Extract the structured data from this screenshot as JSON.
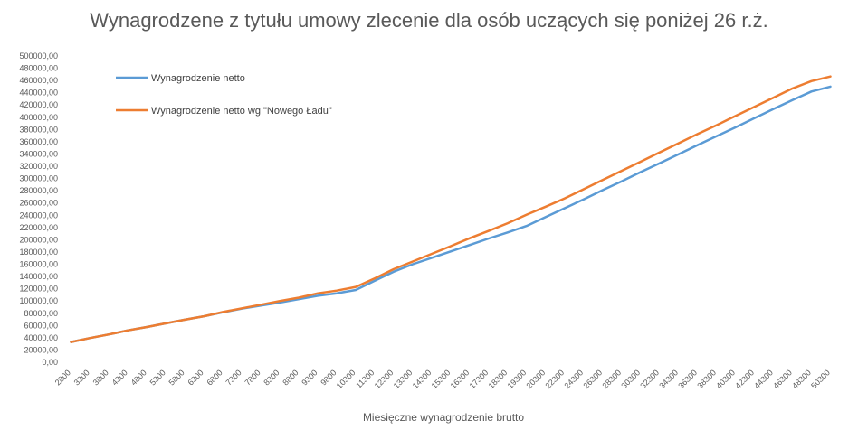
{
  "chart_data": {
    "type": "line",
    "title": "Wynagrodzene z tytułu umowy zlecenie dla osób uczących się poniżej 26 r.ż.",
    "xlabel": "Miesięczne wynagrodzenie brutto",
    "ylabel": "",
    "ylim": [
      0,
      500000
    ],
    "y_ticks": [
      0,
      20000,
      40000,
      60000,
      80000,
      100000,
      120000,
      140000,
      160000,
      180000,
      200000,
      220000,
      240000,
      260000,
      280000,
      300000,
      320000,
      340000,
      360000,
      380000,
      400000,
      420000,
      440000,
      460000,
      480000,
      500000
    ],
    "y_tick_labels": [
      "0,00",
      "20000,00",
      "40000,00",
      "60000,00",
      "80000,00",
      "100000,00",
      "120000,00",
      "140000,00",
      "160000,00",
      "180000,00",
      "200000,00",
      "220000,00",
      "240000,00",
      "260000,00",
      "280000,00",
      "300000,00",
      "320000,00",
      "340000,00",
      "360000,00",
      "380000,00",
      "400000,00",
      "420000,00",
      "440000,00",
      "460000,00",
      "480000,00",
      "500000,00"
    ],
    "categories": [
      "2800",
      "3300",
      "3800",
      "4300",
      "4800",
      "5300",
      "5800",
      "6300",
      "6800",
      "7300",
      "7800",
      "8300",
      "8800",
      "9300",
      "9800",
      "10300",
      "11300",
      "12300",
      "13300",
      "14300",
      "15300",
      "16300",
      "17300",
      "18300",
      "19300",
      "20300",
      "22300",
      "24300",
      "26300",
      "28300",
      "30300",
      "32300",
      "34300",
      "36300",
      "38300",
      "40300",
      "42300",
      "44300",
      "46300",
      "48300",
      "50300"
    ],
    "grid": false,
    "legend_position": "top-left",
    "series": [
      {
        "name": "Wynagrodzenie netto",
        "color": "#5B9BD5",
        "values": [
          33000,
          39500,
          45500,
          52000,
          57500,
          63500,
          69500,
          75000,
          81500,
          87500,
          92500,
          97500,
          103000,
          108500,
          112500,
          118000,
          133000,
          148000,
          160000,
          170500,
          181000,
          191500,
          202000,
          212000,
          222500,
          237000,
          251500,
          266000,
          281000,
          295500,
          310500,
          325000,
          339500,
          354500,
          369000,
          383500,
          398500,
          413500,
          428000,
          442000,
          450000
        ]
      },
      {
        "name": "Wynagrodzenie netto wg \"Nowego Ładu\"",
        "color": "#ED7D31",
        "values": [
          33000,
          39500,
          45500,
          52000,
          57500,
          63500,
          69500,
          75000,
          82000,
          88000,
          94000,
          100000,
          105500,
          112500,
          117000,
          123000,
          137000,
          152000,
          164500,
          177000,
          189500,
          202500,
          214500,
          227000,
          241000,
          254000,
          267500,
          282500,
          297500,
          312500,
          327500,
          342500,
          357500,
          372500,
          387000,
          402000,
          417000,
          432000,
          447000,
          459000,
          466500
        ]
      }
    ]
  }
}
